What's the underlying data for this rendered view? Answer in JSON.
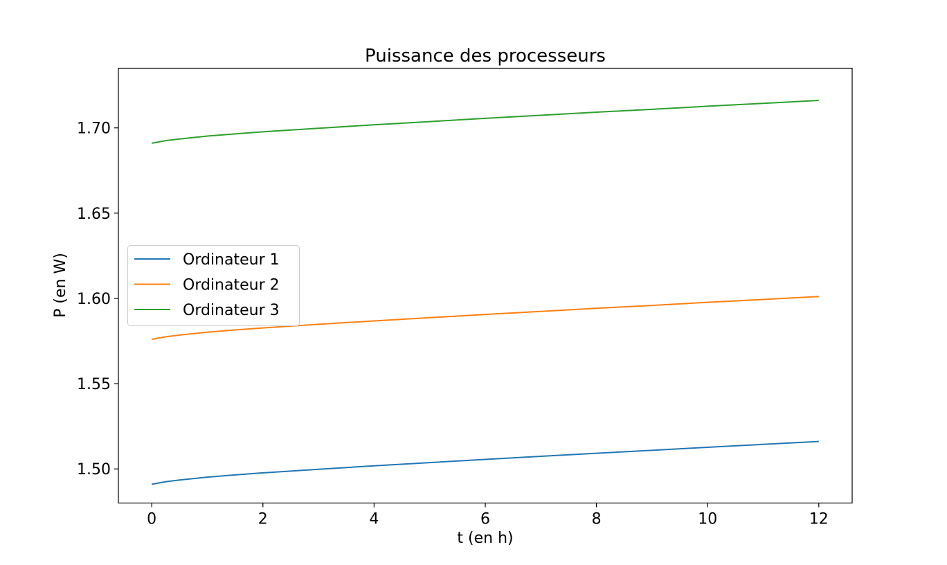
{
  "chart_data": {
    "type": "line",
    "title": "Puissance des processeurs",
    "xlabel": "t (en h)",
    "ylabel": "P (en W)",
    "xlim": [
      -0.6,
      12.6
    ],
    "ylim": [
      1.48,
      1.735
    ],
    "x_ticks": [
      0,
      2,
      4,
      6,
      8,
      10,
      12
    ],
    "x_tick_labels": [
      "0",
      "2",
      "4",
      "6",
      "8",
      "10",
      "12"
    ],
    "y_ticks": [
      1.5,
      1.55,
      1.6,
      1.65,
      1.7
    ],
    "y_tick_labels": [
      "1.50",
      "1.55",
      "1.60",
      "1.65",
      "1.70"
    ],
    "grid": false,
    "legend_position": "center-left",
    "x": [
      0,
      0.25,
      0.5,
      1,
      1.5,
      2,
      3,
      4,
      5,
      6,
      7,
      8,
      9,
      10,
      11,
      12
    ],
    "series": [
      {
        "name": "Ordinateur 1",
        "color": "#1f77b4",
        "values": [
          1.491,
          1.4925,
          1.4935,
          1.4952,
          1.4965,
          1.4977,
          1.4998,
          1.5018,
          1.5037,
          1.5056,
          1.5074,
          1.5092,
          1.5109,
          1.5127,
          1.5144,
          1.5161
        ]
      },
      {
        "name": "Ordinateur 2",
        "color": "#ff7f0e",
        "values": [
          1.576,
          1.5775,
          1.5785,
          1.5802,
          1.5815,
          1.5827,
          1.5848,
          1.5868,
          1.5887,
          1.5906,
          1.5924,
          1.5942,
          1.5959,
          1.5977,
          1.5994,
          1.6011
        ]
      },
      {
        "name": "Ordinateur 3",
        "color": "#2ca02c",
        "values": [
          1.691,
          1.6925,
          1.6935,
          1.6952,
          1.6965,
          1.6977,
          1.6998,
          1.7018,
          1.7037,
          1.7056,
          1.7074,
          1.7092,
          1.7109,
          1.7127,
          1.7144,
          1.7161
        ]
      }
    ]
  }
}
